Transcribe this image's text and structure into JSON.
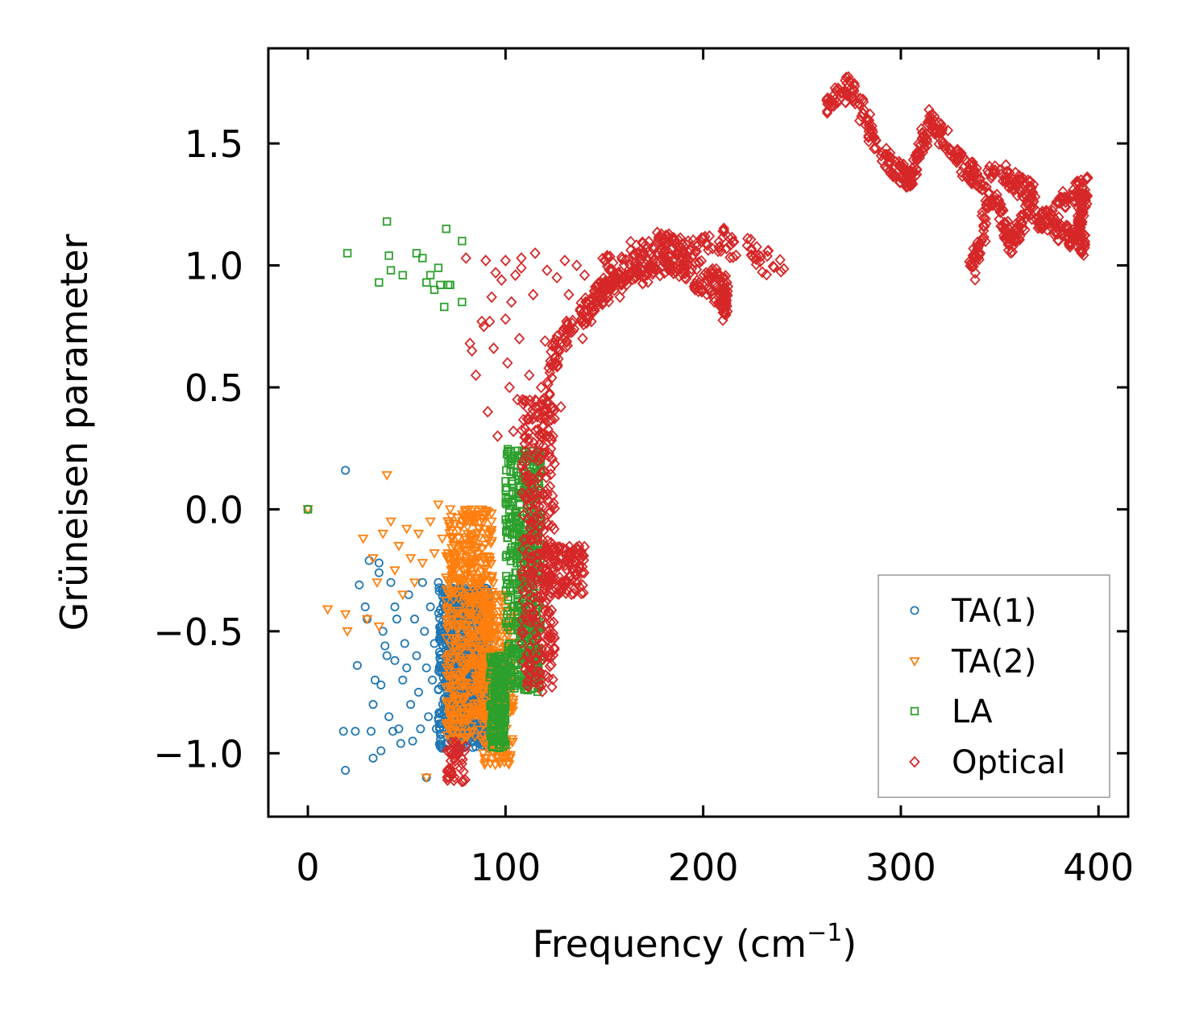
{
  "chart_data": {
    "type": "scatter",
    "title": "",
    "xlabel": "Frequency (cm",
    "xlabel_sup": "−1",
    "xlabel_end": ")",
    "ylabel": "Grüneisen parameter",
    "xlim": [
      -20,
      415
    ],
    "ylim": [
      -1.26,
      1.89
    ],
    "xticks": [
      0,
      100,
      200,
      300,
      400
    ],
    "xtick_labels": [
      "0",
      "100",
      "200",
      "300",
      "400"
    ],
    "yticks": [
      -1.0,
      -0.5,
      0.0,
      0.5,
      1.0,
      1.5
    ],
    "ytick_labels": [
      "−1.0",
      "−0.5",
      "0.0",
      "0.5",
      "1.0",
      "1.5"
    ],
    "grid": false,
    "legend_position": "lower-right",
    "series": [
      {
        "name": "TA(1)",
        "marker": "circle",
        "color": "#1f77b4",
        "points": [
          [
            0,
            0.0
          ],
          [
            19,
            0.16
          ],
          [
            18,
            -0.91
          ],
          [
            19,
            -1.07
          ],
          [
            25,
            -0.64
          ],
          [
            24,
            -0.91
          ],
          [
            26,
            -0.31
          ],
          [
            29,
            -0.4
          ],
          [
            30,
            -0.45
          ],
          [
            31,
            -0.21
          ],
          [
            32,
            -0.91
          ],
          [
            33,
            -0.8
          ],
          [
            33,
            -1.02
          ],
          [
            34,
            -0.7
          ],
          [
            36,
            -0.26
          ],
          [
            36,
            -0.22
          ],
          [
            37,
            -0.99
          ],
          [
            37,
            -0.72
          ],
          [
            38,
            -0.5
          ],
          [
            39,
            -0.56
          ],
          [
            40,
            -0.6
          ],
          [
            41,
            -0.85
          ],
          [
            42,
            -0.3
          ],
          [
            43,
            -0.91
          ],
          [
            44,
            -0.4
          ],
          [
            44,
            -0.62
          ],
          [
            45,
            -0.45
          ],
          [
            46,
            -0.9
          ],
          [
            47,
            -0.96
          ],
          [
            48,
            -0.7
          ],
          [
            49,
            -0.55
          ],
          [
            50,
            -0.65
          ],
          [
            51,
            -0.35
          ],
          [
            52,
            -0.8
          ],
          [
            53,
            -0.95
          ],
          [
            54,
            -0.45
          ],
          [
            55,
            -0.6
          ],
          [
            56,
            -0.75
          ],
          [
            57,
            -0.9
          ],
          [
            58,
            -0.3
          ],
          [
            59,
            -0.5
          ],
          [
            60,
            -1.1
          ],
          [
            60,
            -0.65
          ],
          [
            61,
            -0.85
          ],
          [
            62,
            -0.4
          ],
          [
            63,
            -0.7
          ],
          [
            64,
            -0.55
          ],
          [
            65,
            -0.9
          ],
          [
            66,
            -0.3
          ]
        ]
      },
      {
        "name": "TA(2)",
        "marker": "triangle-down",
        "color": "#ff7f0e",
        "points": [
          [
            0,
            0.0
          ],
          [
            10,
            -0.41
          ],
          [
            19,
            -0.43
          ],
          [
            20,
            -0.5
          ],
          [
            28,
            -0.12
          ],
          [
            30,
            -0.45
          ],
          [
            33,
            -0.2
          ],
          [
            35,
            -0.3
          ],
          [
            36,
            -0.48
          ],
          [
            38,
            -0.1
          ],
          [
            40,
            0.14
          ],
          [
            42,
            -0.05
          ],
          [
            44,
            -0.25
          ],
          [
            46,
            -0.15
          ],
          [
            48,
            -0.35
          ],
          [
            50,
            -0.08
          ],
          [
            52,
            -0.2
          ],
          [
            54,
            -0.3
          ],
          [
            56,
            -0.1
          ],
          [
            58,
            -0.22
          ],
          [
            60,
            -1.1
          ],
          [
            62,
            -0.05
          ],
          [
            64,
            -0.18
          ],
          [
            66,
            0.02
          ],
          [
            68,
            -0.12
          ],
          [
            70,
            -0.28
          ],
          [
            72,
            0.0
          ],
          [
            74,
            -0.15
          ]
        ]
      },
      {
        "name": "LA",
        "marker": "square",
        "color": "#2ca02c",
        "points": [
          [
            0,
            0.0
          ],
          [
            20,
            1.05
          ],
          [
            36,
            0.93
          ],
          [
            40,
            1.18
          ],
          [
            41,
            1.04
          ],
          [
            42,
            0.98
          ],
          [
            48,
            0.96
          ],
          [
            55,
            1.05
          ],
          [
            58,
            1.03
          ],
          [
            60,
            0.93
          ],
          [
            62,
            0.96
          ],
          [
            64,
            0.9
          ],
          [
            66,
            0.99
          ],
          [
            67,
            0.92
          ],
          [
            69,
            0.83
          ],
          [
            70,
            1.15
          ],
          [
            71,
            0.92
          ],
          [
            72,
            0.92
          ],
          [
            78,
            1.1
          ],
          [
            78,
            0.85
          ]
        ]
      },
      {
        "name": "Optical",
        "marker": "diamond",
        "color": "#d62728",
        "points": [
          [
            80,
            1.03
          ],
          [
            82,
            0.68
          ],
          [
            83,
            0.65
          ],
          [
            85,
            0.55
          ],
          [
            88,
            0.77
          ],
          [
            89,
            0.75
          ],
          [
            90,
            1.02
          ],
          [
            91,
            0.4
          ],
          [
            92,
            0.77
          ],
          [
            93,
            0.87
          ],
          [
            94,
            0.66
          ],
          [
            95,
            0.97
          ],
          [
            96,
            0.3
          ],
          [
            98,
            0.94
          ],
          [
            100,
            0.78
          ],
          [
            100,
            1.02
          ],
          [
            101,
            0.6
          ],
          [
            102,
            0.5
          ],
          [
            103,
            0.85
          ],
          [
            104,
            0.32
          ],
          [
            105,
            0.96
          ],
          [
            106,
            0.45
          ],
          [
            107,
            0.7
          ],
          [
            108,
            1.03
          ],
          [
            108,
            0.99
          ],
          [
            110,
            0.33
          ],
          [
            112,
            0.55
          ],
          [
            113,
            0.1
          ],
          [
            114,
            0.88
          ],
          [
            115,
            1.05
          ],
          [
            116,
            0.38
          ],
          [
            118,
            0.5
          ],
          [
            120,
            0.69
          ],
          [
            121,
            0.98
          ],
          [
            122,
            0.23
          ],
          [
            124,
            0.3
          ],
          [
            125,
            0.6
          ],
          [
            126,
            0.95
          ],
          [
            128,
            0.42
          ],
          [
            130,
            1.02
          ],
          [
            132,
            0.88
          ],
          [
            133,
            -0.2
          ],
          [
            134,
            0.73
          ],
          [
            136,
            1.0
          ],
          [
            138,
            -0.2
          ],
          [
            139,
            0.7
          ],
          [
            140,
            0.96
          ]
        ]
      }
    ],
    "dense_regions": [
      {
        "series": "TA(1)",
        "color": "#1f77b4",
        "x": [
          66,
          92
        ],
        "y": [
          -0.98,
          -0.32
        ],
        "count": 700,
        "seed": 11
      },
      {
        "series": "TA(1)",
        "color": "#1f77b4",
        "x": [
          72,
          86
        ],
        "y": [
          -0.95,
          -0.55
        ],
        "count": 300,
        "seed": 12
      },
      {
        "series": "TA(2)",
        "color": "#ff7f0e",
        "x": [
          70,
          94
        ],
        "y": [
          -0.95,
          0.0
        ],
        "count": 550,
        "seed": 21
      },
      {
        "series": "TA(2)",
        "color": "#ff7f0e",
        "x": [
          88,
          104
        ],
        "y": [
          -1.05,
          -0.35
        ],
        "count": 250,
        "seed": 22
      },
      {
        "series": "LA",
        "color": "#2ca02c",
        "x": [
          92,
          100
        ],
        "y": [
          -0.98,
          -0.6
        ],
        "count": 180,
        "seed": 31
      },
      {
        "series": "LA",
        "color": "#2ca02c",
        "x": [
          100,
          118
        ],
        "y": [
          -0.75,
          0.25
        ],
        "count": 500,
        "seed": 32
      },
      {
        "series": "Optical",
        "color": "#d62728",
        "x": [
          108,
          125
        ],
        "y": [
          -0.75,
          0.45
        ],
        "count": 300,
        "seed": 41
      },
      {
        "series": "Optical",
        "color": "#d62728",
        "x": [
          118,
          140
        ],
        "y": [
          -0.35,
          -0.15
        ],
        "count": 120,
        "seed": 42
      },
      {
        "series": "Optical",
        "color": "#d62728",
        "x": [
          70,
          80
        ],
        "y": [
          -1.12,
          -0.95
        ],
        "count": 40,
        "seed": 43
      }
    ],
    "dense_bands": [
      {
        "series": "Optical",
        "color": "#d62728",
        "width": 0.055,
        "count": 260,
        "seed": 51,
        "path": [
          [
            118,
            0.3
          ],
          [
            122,
            0.55
          ],
          [
            128,
            0.7
          ],
          [
            138,
            0.78
          ],
          [
            145,
            0.85
          ],
          [
            150,
            0.9
          ],
          [
            160,
            0.93
          ],
          [
            170,
            0.97
          ],
          [
            180,
            1.0
          ],
          [
            195,
            1.05
          ],
          [
            210,
            1.1
          ],
          [
            225,
            1.05
          ],
          [
            240,
            0.98
          ]
        ]
      },
      {
        "series": "Optical",
        "color": "#d62728",
        "width": 0.08,
        "count": 260,
        "seed": 52,
        "path": [
          [
            150,
            0.95
          ],
          [
            165,
            1.02
          ],
          [
            180,
            1.07
          ],
          [
            190,
            1.03
          ],
          [
            200,
            0.95
          ],
          [
            210,
            0.88
          ],
          [
            212,
            0.84
          ]
        ]
      },
      {
        "series": "Optical",
        "color": "#d62728",
        "width": 0.045,
        "count": 500,
        "seed": 53,
        "path": [
          [
            262,
            1.66
          ],
          [
            270,
            1.7
          ],
          [
            275,
            1.74
          ],
          [
            282,
            1.6
          ],
          [
            290,
            1.45
          ],
          [
            300,
            1.38
          ],
          [
            305,
            1.35
          ],
          [
            310,
            1.48
          ],
          [
            315,
            1.6
          ],
          [
            322,
            1.52
          ],
          [
            330,
            1.42
          ],
          [
            340,
            1.35
          ],
          [
            350,
            1.38
          ],
          [
            360,
            1.33
          ],
          [
            367,
            1.3
          ],
          [
            360,
            1.15
          ],
          [
            355,
            1.08
          ],
          [
            350,
            1.25
          ],
          [
            345,
            1.28
          ],
          [
            340,
            1.08
          ],
          [
            336,
            0.98
          ]
        ]
      },
      {
        "series": "Optical",
        "color": "#d62728",
        "width": 0.045,
        "count": 200,
        "seed": 54,
        "path": [
          [
            367,
            1.2
          ],
          [
            375,
            1.18
          ],
          [
            385,
            1.3
          ],
          [
            395,
            1.33
          ],
          [
            390,
            1.2
          ],
          [
            392,
            1.08
          ],
          [
            385,
            1.12
          ],
          [
            375,
            1.15
          ]
        ]
      }
    ],
    "legend": [
      "TA(1)",
      "TA(2)",
      "LA",
      "Optical"
    ]
  }
}
